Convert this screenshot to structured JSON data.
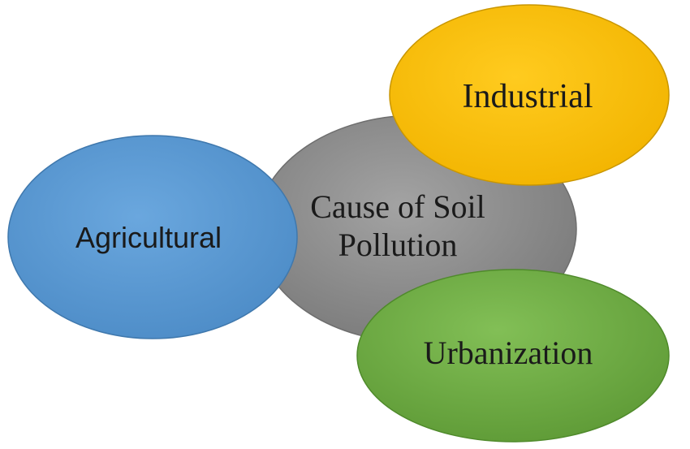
{
  "diagram": {
    "center": {
      "line1": "Cause of Soil",
      "line2": "Pollution",
      "color": "#8c8c8c"
    },
    "nodes": [
      {
        "label": "Agricultural",
        "color": "#5b9bd5"
      },
      {
        "label": "Industrial",
        "color": "#ffc000"
      },
      {
        "label": "Urbanization",
        "color": "#70ad47"
      }
    ]
  }
}
